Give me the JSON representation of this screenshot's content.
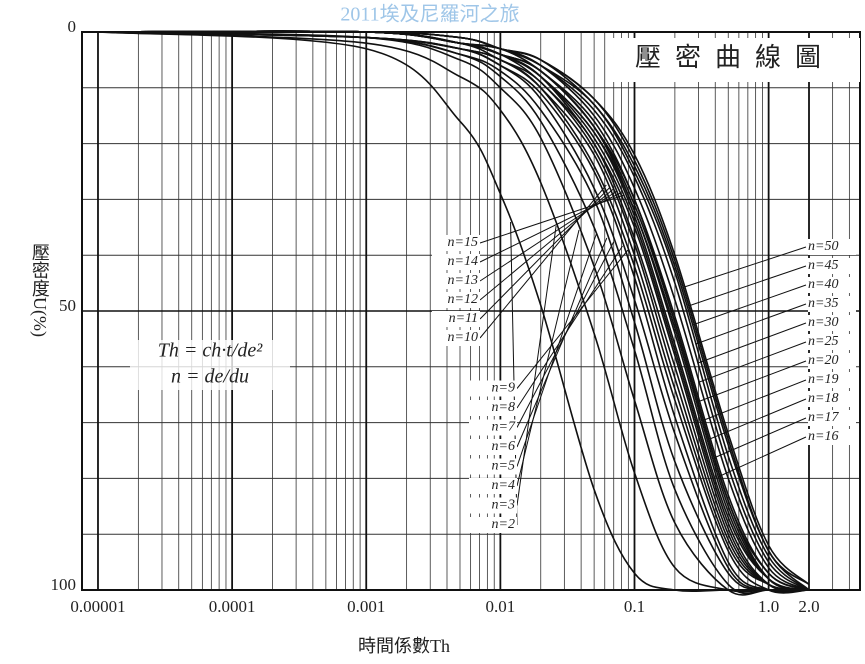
{
  "chart_data": {
    "type": "line",
    "title": "壓密曲線圖",
    "watermark": "2011埃及尼羅河之旅",
    "x_label": "時間係數Th",
    "y_label": "壓密度U(%)",
    "annotations": [
      "Th = ch·t/de²",
      "n = de/du"
    ],
    "x_scale": "log",
    "xlim": [
      7.6e-06,
      4.8
    ],
    "xticks": [
      1e-05,
      0.0001,
      0.001,
      0.01,
      0.1,
      {
        "value": 1,
        "label": "1.0"
      },
      {
        "value": 2,
        "label": "2.0"
      }
    ],
    "xminorticks": [
      2e-05,
      3e-05,
      4e-05,
      5e-05,
      6e-05,
      7e-05,
      8e-05,
      9e-05,
      0.0002,
      0.0003,
      0.0004,
      0.0005,
      0.0006,
      0.0007,
      0.0008,
      0.0009,
      0.002,
      0.003,
      0.004,
      0.005,
      0.006,
      0.007,
      0.008,
      0.009,
      0.02,
      0.03,
      0.04,
      0.05,
      0.06,
      0.07,
      0.08,
      0.09,
      0.2,
      0.3,
      0.4,
      0.5,
      0.6,
      0.7,
      0.8,
      0.9,
      3,
      4
    ],
    "ylim": [
      0,
      100
    ],
    "y_inverted": true,
    "yticks": [
      0,
      50,
      100
    ],
    "yminorticks": [
      10,
      20,
      30,
      40,
      60,
      70,
      80,
      90
    ],
    "grid": true,
    "color": "#111111",
    "x": [
      1e-05,
      0.001,
      0.005,
      0.01,
      0.02,
      0.05,
      0.1,
      0.2,
      0.5,
      1,
      2
    ],
    "series": [
      {
        "name": "n=2",
        "values": [
          0,
          3,
          16,
          29,
          49,
          82,
          97,
          100,
          100,
          100,
          100
        ]
      },
      {
        "name": "n=3",
        "values": [
          0,
          2,
          8,
          14,
          27,
          54,
          79,
          96,
          100,
          100,
          100
        ]
      },
      {
        "name": "n=4",
        "values": [
          0,
          1,
          5,
          10,
          19,
          42,
          66,
          88,
          100,
          100,
          100
        ]
      },
      {
        "name": "n=5",
        "values": [
          0,
          1,
          4,
          8,
          16,
          35,
          57,
          82,
          99,
          100,
          100
        ]
      },
      {
        "name": "n=6",
        "values": [
          0,
          1,
          4,
          7,
          14,
          30,
          52,
          77,
          97,
          100,
          100
        ]
      },
      {
        "name": "n=7",
        "values": [
          0,
          1,
          3,
          6,
          12,
          28,
          48,
          72,
          96,
          100,
          100
        ]
      },
      {
        "name": "n=8",
        "values": [
          0,
          1,
          3,
          6,
          11,
          25,
          44,
          69,
          95,
          100,
          100
        ]
      },
      {
        "name": "n=9",
        "values": [
          0,
          1,
          3,
          5,
          10,
          24,
          42,
          66,
          93,
          100,
          100
        ]
      },
      {
        "name": "n=10",
        "values": [
          0,
          1,
          3,
          5,
          10,
          22,
          40,
          64,
          92,
          99,
          100
        ]
      },
      {
        "name": "n=11",
        "values": [
          0,
          0,
          2,
          5,
          9,
          21,
          38,
          62,
          91,
          99,
          100
        ]
      },
      {
        "name": "n=12",
        "values": [
          0,
          0,
          2,
          4,
          9,
          20,
          37,
          60,
          90,
          99,
          100
        ]
      },
      {
        "name": "n=13",
        "values": [
          0,
          0,
          2,
          4,
          8,
          20,
          35,
          58,
          89,
          99,
          100
        ]
      },
      {
        "name": "n=14",
        "values": [
          0,
          0,
          2,
          4,
          8,
          19,
          34,
          57,
          88,
          99,
          100
        ]
      },
      {
        "name": "n=15",
        "values": [
          0,
          0,
          2,
          4,
          8,
          18,
          33,
          56,
          87,
          98,
          100
        ]
      },
      {
        "name": "n=16",
        "values": [
          0,
          0,
          2,
          4,
          8,
          18,
          32,
          54,
          86,
          98,
          100
        ]
      },
      {
        "name": "n=17",
        "values": [
          0,
          0,
          2,
          4,
          7,
          17,
          32,
          53,
          85,
          98,
          100
        ]
      },
      {
        "name": "n=18",
        "values": [
          0,
          0,
          2,
          4,
          7,
          17,
          31,
          52,
          84,
          98,
          100
        ]
      },
      {
        "name": "n=19",
        "values": [
          0,
          0,
          2,
          4,
          7,
          17,
          30,
          52,
          84,
          97,
          100
        ]
      },
      {
        "name": "n=20",
        "values": [
          0,
          0,
          2,
          3,
          7,
          16,
          30,
          51,
          83,
          97,
          100
        ]
      },
      {
        "name": "n=25",
        "values": [
          0,
          0,
          2,
          3,
          6,
          15,
          28,
          48,
          80,
          96,
          100
        ]
      },
      {
        "name": "n=30",
        "values": [
          0,
          0,
          2,
          3,
          6,
          14,
          26,
          45,
          78,
          95,
          100
        ]
      },
      {
        "name": "n=35",
        "values": [
          0,
          0,
          1,
          3,
          6,
          13,
          25,
          43,
          76,
          94,
          100
        ]
      },
      {
        "name": "n=40",
        "values": [
          0,
          0,
          1,
          3,
          5,
          13,
          24,
          42,
          74,
          93,
          100
        ]
      },
      {
        "name": "n=45",
        "values": [
          0,
          0,
          1,
          3,
          5,
          12,
          23,
          41,
          73,
          93,
          99
        ]
      },
      {
        "name": "n=50",
        "values": [
          0,
          0,
          1,
          3,
          5,
          12,
          22,
          40,
          72,
          92,
          99
        ]
      }
    ]
  }
}
